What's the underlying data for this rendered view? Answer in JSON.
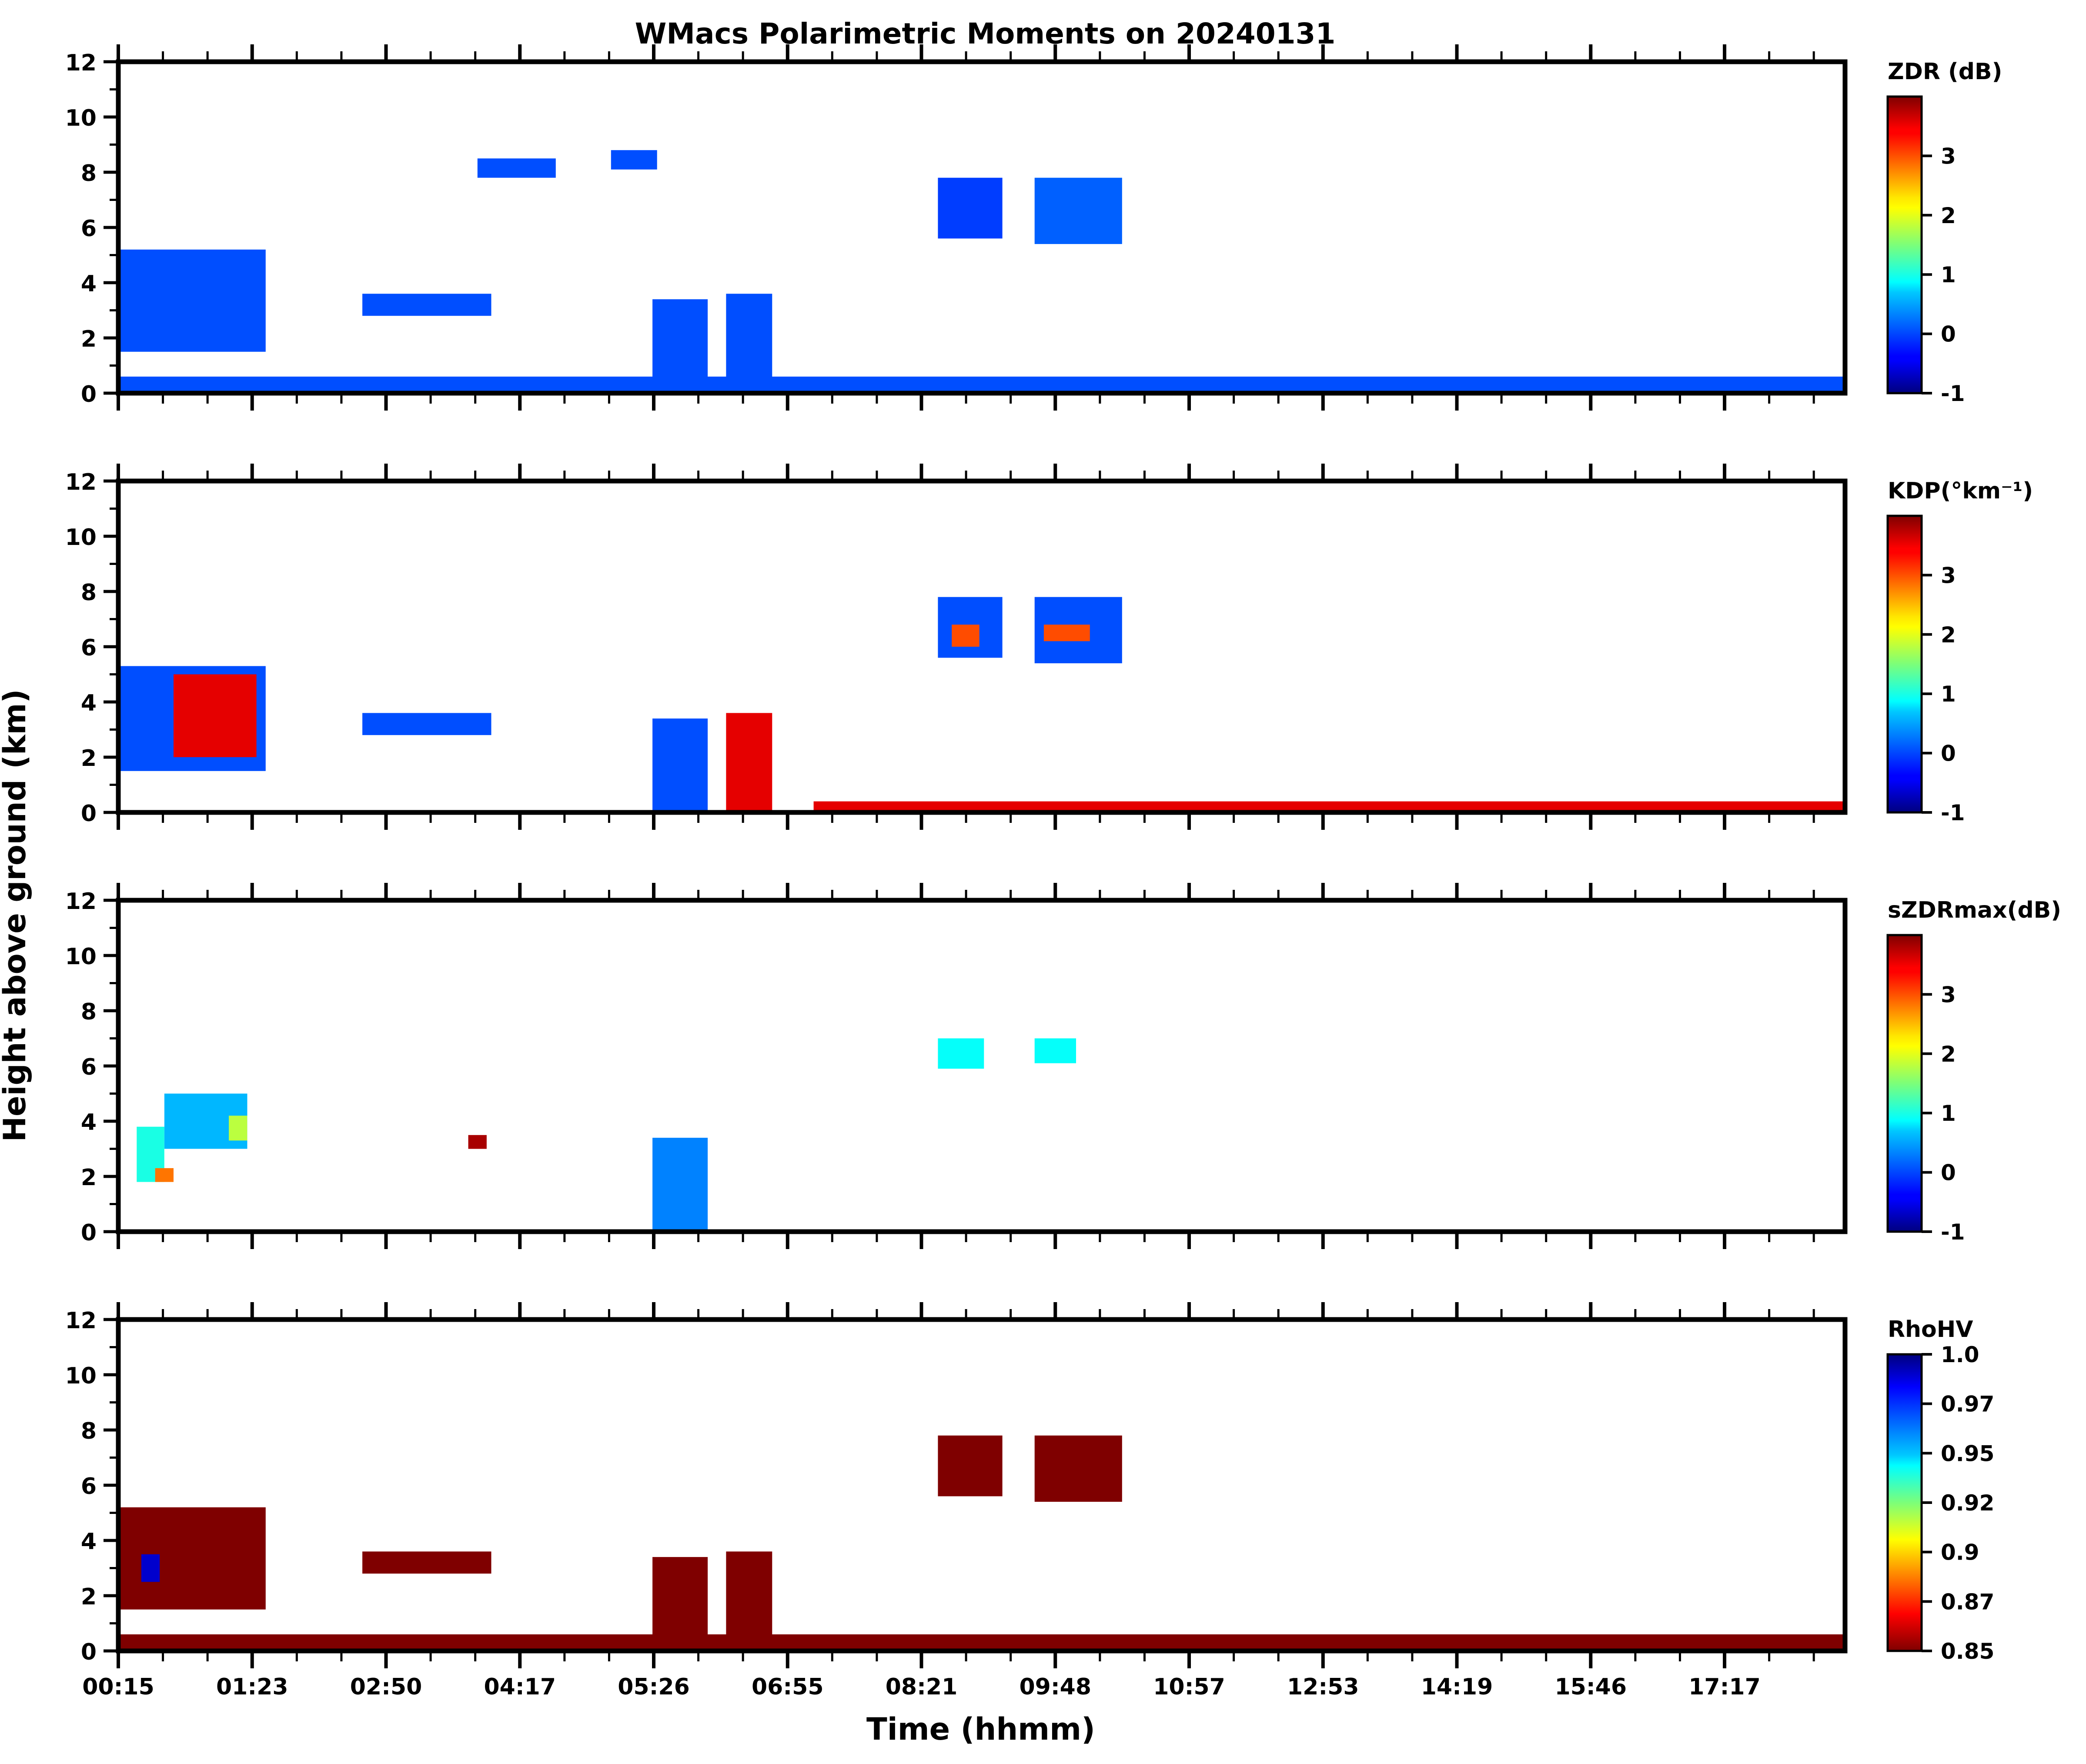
{
  "figure": {
    "title": "WMacs Polarimetric Moments on 20240131",
    "xlabel": "Time (hhmm)",
    "ylabel": "Height above ground (km)"
  },
  "chart_data": [
    {
      "type": "heatmap",
      "panel": "ZDR",
      "colorbar_label": "ZDR (dB)",
      "colorbar_ticks": [
        "-1",
        "0",
        "1",
        "2",
        "3"
      ],
      "colorbar_range": [
        -1,
        4
      ],
      "ylim": [
        0,
        12
      ],
      "yticks": [
        "0",
        "2",
        "4",
        "6",
        "8",
        "10",
        "12"
      ],
      "xticks": [
        "00:15",
        "01:23",
        "02:50",
        "04:17",
        "05:26",
        "06:55",
        "08:21",
        "09:48",
        "10:57",
        "12:53",
        "14:19",
        "15:46",
        "17:17"
      ],
      "xlim_hours": [
        0.25,
        19.0
      ],
      "regions": [
        {
          "t": [
            0.25,
            1.85
          ],
          "h": [
            1.5,
            5.2
          ],
          "value": 0.0
        },
        {
          "t": [
            4.15,
            5.0
          ],
          "h": [
            7.8,
            8.5
          ],
          "value": 0.0
        },
        {
          "t": [
            5.6,
            6.1
          ],
          "h": [
            8.1,
            8.8
          ],
          "value": 0.0
        },
        {
          "t": [
            2.9,
            4.3
          ],
          "h": [
            2.8,
            3.6
          ],
          "value": 0.0
        },
        {
          "t": [
            6.05,
            6.65
          ],
          "h": [
            0.0,
            3.4
          ],
          "value": 0.0
        },
        {
          "t": [
            6.85,
            7.35
          ],
          "h": [
            0.0,
            3.6
          ],
          "value": 0.0
        },
        {
          "t": [
            9.15,
            9.85
          ],
          "h": [
            5.6,
            7.8
          ],
          "value": -0.1
        },
        {
          "t": [
            10.2,
            11.15
          ],
          "h": [
            5.4,
            7.8
          ],
          "value": 0.1
        },
        {
          "t": [
            0.25,
            19.0
          ],
          "h": [
            0.0,
            0.6
          ],
          "value": 0.0
        }
      ]
    },
    {
      "type": "heatmap",
      "panel": "KDP",
      "colorbar_label": "KDP(°km⁻¹)",
      "colorbar_ticks": [
        "-1",
        "0",
        "1",
        "2",
        "3"
      ],
      "colorbar_range": [
        -1,
        4
      ],
      "ylim": [
        0,
        12
      ],
      "yticks": [
        "0",
        "2",
        "4",
        "6",
        "8",
        "10",
        "12"
      ],
      "xticks": [
        "00:15",
        "01:23",
        "02:50",
        "04:17",
        "05:26",
        "06:55",
        "08:21",
        "09:48",
        "10:57",
        "12:53",
        "14:19",
        "15:46",
        "17:17"
      ],
      "xlim_hours": [
        0.25,
        19.0
      ],
      "regions": [
        {
          "t": [
            0.25,
            1.85
          ],
          "h": [
            1.5,
            5.3
          ],
          "value": 0.0
        },
        {
          "t": [
            0.85,
            1.75
          ],
          "h": [
            2.0,
            5.0
          ],
          "value": 3.5
        },
        {
          "t": [
            2.9,
            4.3
          ],
          "h": [
            2.8,
            3.6
          ],
          "value": 0.0
        },
        {
          "t": [
            6.05,
            6.65
          ],
          "h": [
            0.0,
            3.4
          ],
          "value": 0.0
        },
        {
          "t": [
            6.85,
            7.35
          ],
          "h": [
            0.0,
            3.6
          ],
          "value": 3.5
        },
        {
          "t": [
            9.15,
            9.85
          ],
          "h": [
            5.6,
            7.8
          ],
          "value": 0.0
        },
        {
          "t": [
            9.3,
            9.6
          ],
          "h": [
            6.0,
            6.8
          ],
          "value": 3.0
        },
        {
          "t": [
            10.2,
            11.15
          ],
          "h": [
            5.4,
            7.8
          ],
          "value": 0.0
        },
        {
          "t": [
            10.3,
            10.8
          ],
          "h": [
            6.2,
            6.8
          ],
          "value": 3.0
        },
        {
          "t": [
            7.8,
            19.0
          ],
          "h": [
            0.0,
            0.4
          ],
          "value": 3.5
        }
      ]
    },
    {
      "type": "heatmap",
      "panel": "sZDRmax",
      "colorbar_label": "sZDRmax(dB)",
      "colorbar_ticks": [
        "-1",
        "0",
        "1",
        "2",
        "3"
      ],
      "colorbar_range": [
        -1,
        4
      ],
      "ylim": [
        0,
        12
      ],
      "yticks": [
        "0",
        "2",
        "4",
        "6",
        "8",
        "10",
        "12"
      ],
      "xticks": [
        "00:15",
        "01:23",
        "02:50",
        "04:17",
        "05:26",
        "06:55",
        "08:21",
        "09:48",
        "10:57",
        "12:53",
        "14:19",
        "15:46",
        "17:17"
      ],
      "xlim_hours": [
        0.25,
        19.0
      ],
      "regions": [
        {
          "t": [
            0.45,
            0.75
          ],
          "h": [
            1.8,
            3.8
          ],
          "value": 1.0
        },
        {
          "t": [
            0.65,
            0.85
          ],
          "h": [
            1.8,
            2.3
          ],
          "value": 2.8
        },
        {
          "t": [
            0.75,
            1.65
          ],
          "h": [
            3.0,
            5.0
          ],
          "value": 0.6
        },
        {
          "t": [
            1.45,
            1.65
          ],
          "h": [
            3.3,
            4.2
          ],
          "value": 1.8
        },
        {
          "t": [
            4.05,
            4.25
          ],
          "h": [
            3.0,
            3.5
          ],
          "value": 3.8
        },
        {
          "t": [
            6.05,
            6.65
          ],
          "h": [
            0.0,
            3.4
          ],
          "value": 0.3
        },
        {
          "t": [
            9.15,
            9.65
          ],
          "h": [
            5.9,
            7.0
          ],
          "value": 0.9
        },
        {
          "t": [
            10.2,
            10.65
          ],
          "h": [
            6.1,
            7.0
          ],
          "value": 0.9
        }
      ]
    },
    {
      "type": "heatmap",
      "panel": "RhoHV",
      "colorbar_label": "RhoHV",
      "colorbar_ticks": [
        "0.85",
        "0.87",
        "0.9",
        "0.92",
        "0.95",
        "0.97",
        "1.0"
      ],
      "colorbar_range": [
        0.85,
        1.0
      ],
      "ylim": [
        0,
        12
      ],
      "yticks": [
        "0",
        "2",
        "4",
        "6",
        "8",
        "10",
        "12"
      ],
      "xticks": [
        "00:15",
        "01:23",
        "02:50",
        "04:17",
        "05:26",
        "06:55",
        "08:21",
        "09:48",
        "10:57",
        "12:53",
        "14:19",
        "15:46",
        "17:17"
      ],
      "xlim_hours": [
        0.25,
        19.0
      ],
      "regions": [
        {
          "t": [
            0.25,
            1.85
          ],
          "h": [
            1.5,
            5.2
          ],
          "value": 0.85
        },
        {
          "t": [
            0.5,
            0.7
          ],
          "h": [
            2.5,
            3.5
          ],
          "value": 0.99
        },
        {
          "t": [
            2.9,
            4.3
          ],
          "h": [
            2.8,
            3.6
          ],
          "value": 0.85
        },
        {
          "t": [
            6.05,
            6.65
          ],
          "h": [
            0.0,
            3.4
          ],
          "value": 0.85
        },
        {
          "t": [
            6.85,
            7.35
          ],
          "h": [
            0.0,
            3.6
          ],
          "value": 0.85
        },
        {
          "t": [
            9.15,
            9.85
          ],
          "h": [
            5.6,
            7.8
          ],
          "value": 0.85
        },
        {
          "t": [
            10.2,
            11.15
          ],
          "h": [
            5.4,
            7.8
          ],
          "value": 0.85
        },
        {
          "t": [
            0.25,
            19.0
          ],
          "h": [
            0.0,
            0.6
          ],
          "value": 0.85
        }
      ]
    }
  ]
}
